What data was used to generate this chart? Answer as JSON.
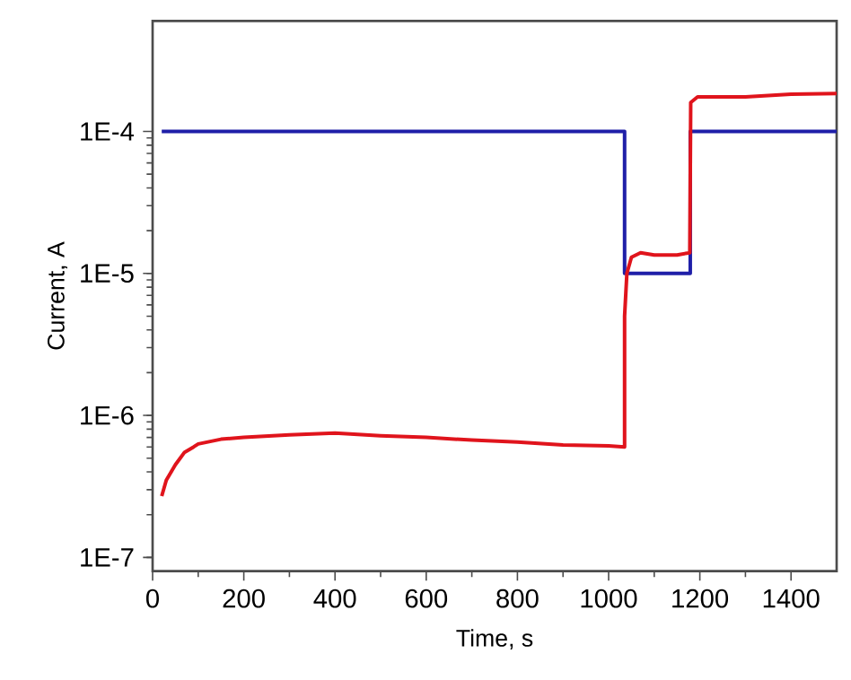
{
  "chart_data": {
    "type": "line",
    "xlabel": "Time, s",
    "ylabel": "Current, A",
    "log": "y",
    "grid": false,
    "line_style": "solid",
    "marker": "none",
    "xlim": [
      0,
      1500
    ],
    "xticks": [
      0,
      200,
      400,
      600,
      800,
      1000,
      1200,
      1400
    ],
    "ylim": [
      8e-08,
      0.0006
    ],
    "yticks": [
      {
        "value": 1e-07,
        "label": "1E-7"
      },
      {
        "value": 1e-06,
        "label": "1E-6"
      },
      {
        "value": 1e-05,
        "label": "1E-5"
      },
      {
        "value": 0.0001,
        "label": "1E-4"
      }
    ],
    "series": [
      {
        "color": "#1f1fa8",
        "x": [
          20,
          1035,
          1035,
          1179,
          1179,
          1500
        ],
        "values": [
          0.0001,
          0.0001,
          1e-05,
          1e-05,
          0.0001,
          0.0001
        ]
      },
      {
        "color": "#e0141c",
        "x": [
          20,
          30,
          50,
          70,
          90,
          100,
          150,
          200,
          300,
          400,
          500,
          600,
          700,
          800,
          900,
          1000,
          1035,
          1035,
          1040,
          1050,
          1070,
          1100,
          1150,
          1178,
          1180,
          1195,
          1300,
          1400,
          1500
        ],
        "values": [
          2.7e-07,
          3.5e-07,
          4.5e-07,
          5.5e-07,
          6e-07,
          6.3e-07,
          6.8e-07,
          7e-07,
          7.3e-07,
          7.5e-07,
          7.2e-07,
          7e-07,
          6.7e-07,
          6.5e-07,
          6.2e-07,
          6.1e-07,
          6e-07,
          5e-06,
          1e-05,
          1.3e-05,
          1.4e-05,
          1.35e-05,
          1.35e-05,
          1.4e-05,
          0.00016,
          0.000175,
          0.000175,
          0.000183,
          0.000185
        ]
      }
    ]
  }
}
